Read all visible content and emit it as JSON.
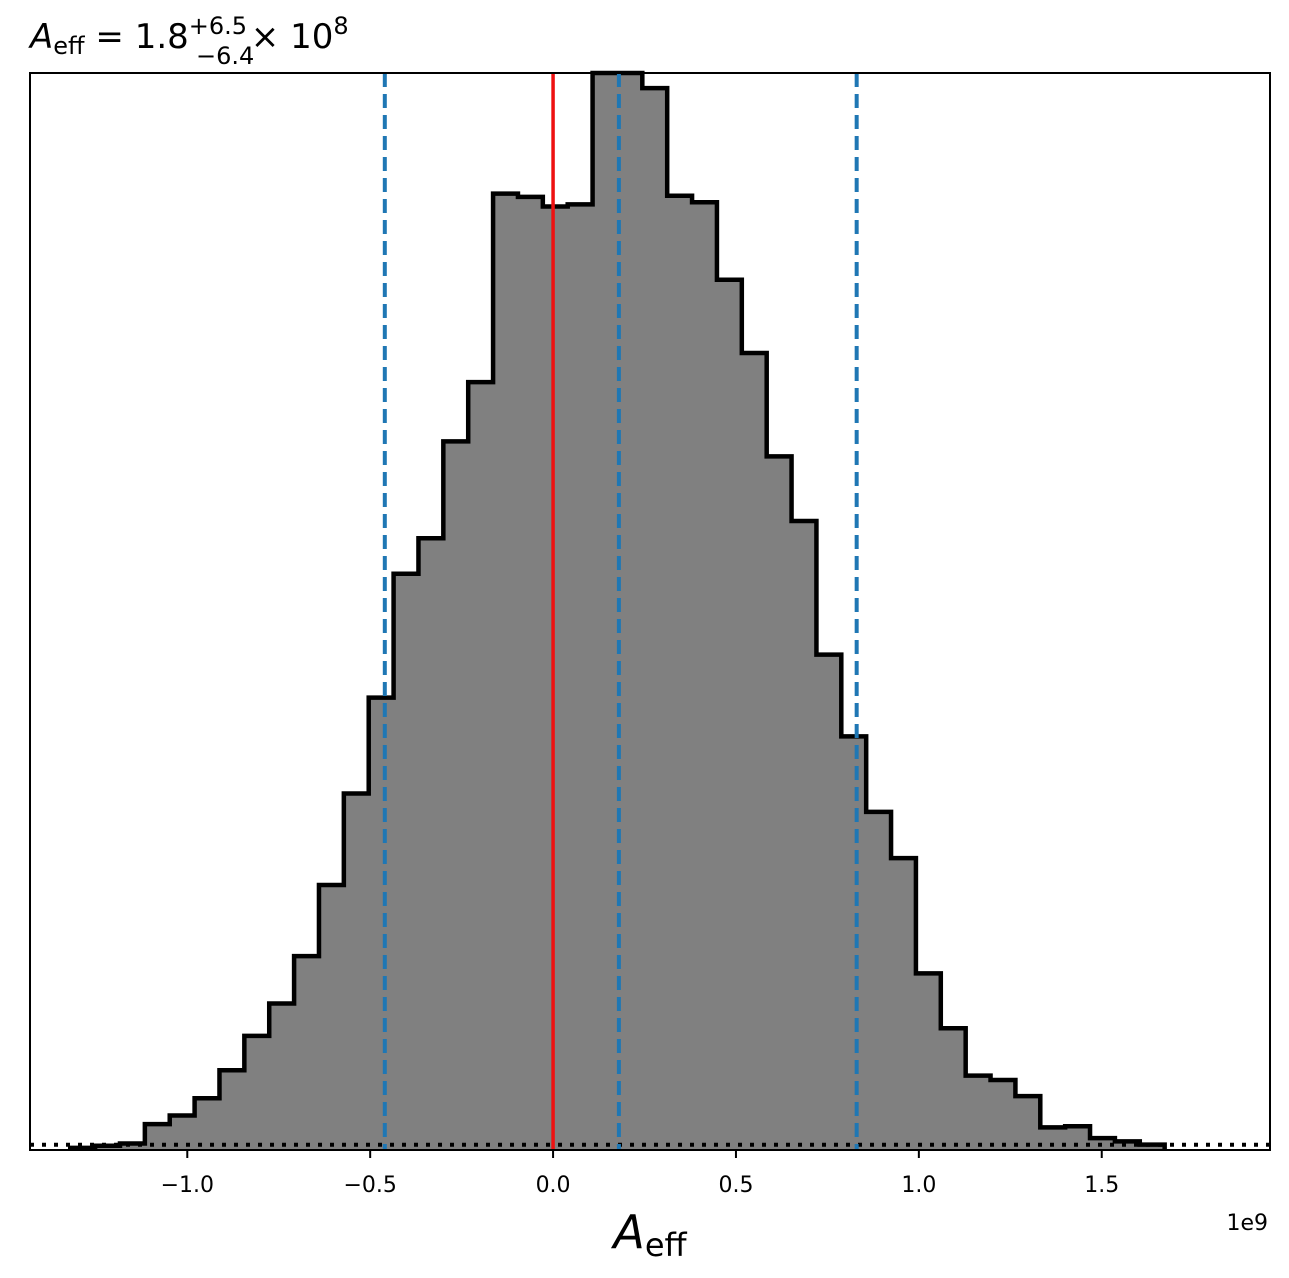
{
  "chart_data": {
    "type": "bar",
    "title": {
      "symbol": "A",
      "subscript": "eff",
      "equals": " = ",
      "median": "1.8",
      "upper": "+6.5",
      "lower": "−6.4",
      "times": " × 10",
      "exponent": "8"
    },
    "xlabel": {
      "symbol": "A",
      "subscript": "eff"
    },
    "offset_text": "1e9",
    "xlim": [
      -1.43,
      1.96
    ],
    "ylim": [
      0,
      1.0
    ],
    "x_ticks": [
      -1.0,
      -0.5,
      0.0,
      0.5,
      1.0,
      1.5
    ],
    "x_tick_labels": [
      "−1.0",
      "−0.5",
      "0.0",
      "0.5",
      "1.0",
      "1.5"
    ],
    "y_ticks": [],
    "grid": false,
    "bin_edges": [
      -1.32,
      -1.252,
      -1.184,
      -1.116,
      -1.048,
      -0.98,
      -0.912,
      -0.844,
      -0.776,
      -0.708,
      -0.64,
      -0.572,
      -0.504,
      -0.436,
      -0.368,
      -0.3,
      -0.232,
      -0.164,
      -0.096,
      -0.028,
      0.04,
      0.108,
      0.176,
      0.244,
      0.312,
      0.38,
      0.448,
      0.516,
      0.584,
      0.652,
      0.72,
      0.788,
      0.856,
      0.924,
      0.992,
      1.06,
      1.128,
      1.196,
      1.264,
      1.332,
      1.4,
      1.468,
      1.536,
      1.604,
      1.672
    ],
    "values": [
      0.002,
      0.004,
      0.006,
      0.024,
      0.032,
      0.048,
      0.074,
      0.106,
      0.136,
      0.18,
      0.246,
      0.331,
      0.42,
      0.535,
      0.568,
      0.658,
      0.713,
      0.888,
      0.885,
      0.876,
      0.878,
      1.0,
      1.0,
      0.986,
      0.886,
      0.88,
      0.808,
      0.74,
      0.644,
      0.584,
      0.46,
      0.384,
      0.314,
      0.271,
      0.164,
      0.113,
      0.069,
      0.065,
      0.05,
      0.021,
      0.022,
      0.011,
      0.008,
      0.005
    ],
    "fill_color": "#808080",
    "edge_color": "#000000",
    "truth_line": {
      "x": 0.0,
      "color": "#ee1111"
    },
    "quantile_lines": {
      "x": [
        -0.46,
        0.18,
        0.83
      ],
      "color": "#1f77b4"
    },
    "baseline": {
      "y": 0.003,
      "style": "dotted",
      "color": "#000000"
    }
  }
}
